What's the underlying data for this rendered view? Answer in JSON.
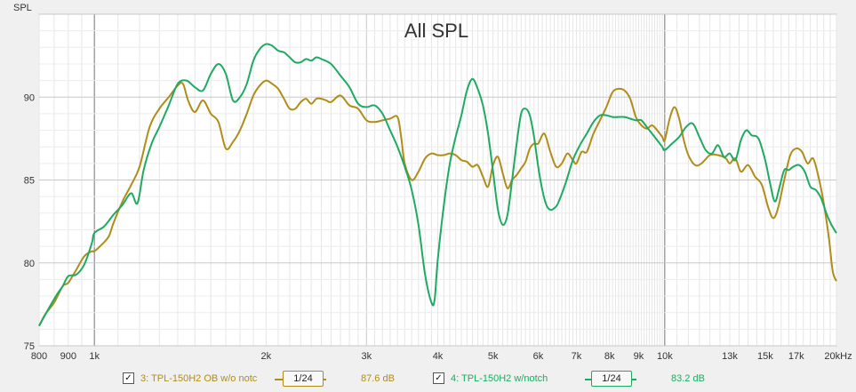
{
  "chart_data": {
    "type": "line",
    "title": "All SPL",
    "ylabel": "SPL",
    "xlabel": "",
    "xscale": "log",
    "xlim": [
      800,
      20000
    ],
    "ylim": [
      75,
      95
    ],
    "grid": true,
    "x_ticks": [
      {
        "value": 800,
        "label": "800"
      },
      {
        "value": 900,
        "label": "900"
      },
      {
        "value": 1000,
        "label": "1k"
      },
      {
        "value": 2000,
        "label": "2k"
      },
      {
        "value": 3000,
        "label": "3k"
      },
      {
        "value": 4000,
        "label": "4k"
      },
      {
        "value": 5000,
        "label": "5k"
      },
      {
        "value": 6000,
        "label": "6k"
      },
      {
        "value": 7000,
        "label": "7k"
      },
      {
        "value": 8000,
        "label": "8k"
      },
      {
        "value": 9000,
        "label": "9k"
      },
      {
        "value": 10000,
        "label": "10k"
      },
      {
        "value": 13000,
        "label": "13k"
      },
      {
        "value": 15000,
        "label": "15k"
      },
      {
        "value": 17000,
        "label": "17k"
      },
      {
        "value": 20000,
        "label": "20kHz"
      }
    ],
    "y_ticks": [
      {
        "value": 75,
        "label": "75"
      },
      {
        "value": 80,
        "label": "80"
      },
      {
        "value": 85,
        "label": "85"
      },
      {
        "value": 90,
        "label": "90"
      }
    ],
    "series": [
      {
        "name": "3: TPL-150H2 OB w/o notc",
        "color": "#b08c18",
        "smoothing": "1/24",
        "value_label": "87.6 dB",
        "points": [
          [
            800,
            76.2
          ],
          [
            820,
            76.9
          ],
          [
            850,
            77.6
          ],
          [
            880,
            78.6
          ],
          [
            900,
            78.8
          ],
          [
            930,
            79.6
          ],
          [
            960,
            80.4
          ],
          [
            990,
            80.7
          ],
          [
            1000,
            80.7
          ],
          [
            1030,
            81.1
          ],
          [
            1060,
            81.6
          ],
          [
            1080,
            82.4
          ],
          [
            1120,
            83.7
          ],
          [
            1160,
            84.7
          ],
          [
            1200,
            85.8
          ],
          [
            1250,
            88.2
          ],
          [
            1300,
            89.3
          ],
          [
            1350,
            90.0
          ],
          [
            1400,
            90.7
          ],
          [
            1430,
            90.8
          ],
          [
            1460,
            89.8
          ],
          [
            1500,
            89.1
          ],
          [
            1550,
            89.8
          ],
          [
            1600,
            89.0
          ],
          [
            1650,
            88.5
          ],
          [
            1700,
            86.9
          ],
          [
            1750,
            87.3
          ],
          [
            1800,
            88.0
          ],
          [
            1850,
            89.0
          ],
          [
            1900,
            90.1
          ],
          [
            1950,
            90.7
          ],
          [
            2000,
            91.0
          ],
          [
            2050,
            90.8
          ],
          [
            2100,
            90.5
          ],
          [
            2150,
            89.9
          ],
          [
            2200,
            89.3
          ],
          [
            2250,
            89.3
          ],
          [
            2300,
            89.7
          ],
          [
            2350,
            89.9
          ],
          [
            2400,
            89.6
          ],
          [
            2450,
            89.9
          ],
          [
            2500,
            89.9
          ],
          [
            2550,
            89.8
          ],
          [
            2600,
            89.7
          ],
          [
            2700,
            90.1
          ],
          [
            2800,
            89.5
          ],
          [
            2900,
            89.3
          ],
          [
            3000,
            88.6
          ],
          [
            3100,
            88.5
          ],
          [
            3200,
            88.6
          ],
          [
            3300,
            88.7
          ],
          [
            3400,
            88.8
          ],
          [
            3450,
            87.6
          ],
          [
            3500,
            86.0
          ],
          [
            3600,
            85.0
          ],
          [
            3700,
            85.5
          ],
          [
            3800,
            86.3
          ],
          [
            3900,
            86.6
          ],
          [
            4000,
            86.5
          ],
          [
            4100,
            86.5
          ],
          [
            4200,
            86.6
          ],
          [
            4300,
            86.5
          ],
          [
            4400,
            86.2
          ],
          [
            4500,
            86.1
          ],
          [
            4600,
            85.8
          ],
          [
            4700,
            85.9
          ],
          [
            4800,
            85.2
          ],
          [
            4900,
            84.6
          ],
          [
            5000,
            85.9
          ],
          [
            5100,
            86.4
          ],
          [
            5200,
            85.4
          ],
          [
            5300,
            84.5
          ],
          [
            5400,
            85.0
          ],
          [
            5500,
            85.3
          ],
          [
            5600,
            85.7
          ],
          [
            5700,
            86.1
          ],
          [
            5800,
            86.9
          ],
          [
            5900,
            87.2
          ],
          [
            6000,
            87.2
          ],
          [
            6150,
            87.8
          ],
          [
            6300,
            86.7
          ],
          [
            6450,
            85.8
          ],
          [
            6600,
            86.0
          ],
          [
            6750,
            86.6
          ],
          [
            6900,
            86.2
          ],
          [
            7000,
            86.0
          ],
          [
            7150,
            86.7
          ],
          [
            7300,
            86.7
          ],
          [
            7500,
            87.8
          ],
          [
            7700,
            88.6
          ],
          [
            7900,
            89.4
          ],
          [
            8100,
            90.3
          ],
          [
            8300,
            90.5
          ],
          [
            8500,
            90.4
          ],
          [
            8700,
            89.9
          ],
          [
            8900,
            88.8
          ],
          [
            9100,
            88.3
          ],
          [
            9300,
            88.1
          ],
          [
            9500,
            88.3
          ],
          [
            9700,
            88.0
          ],
          [
            9900,
            87.6
          ],
          [
            10000,
            87.4
          ],
          [
            10200,
            88.7
          ],
          [
            10400,
            89.4
          ],
          [
            10600,
            88.7
          ],
          [
            10800,
            87.4
          ],
          [
            11000,
            86.5
          ],
          [
            11300,
            85.9
          ],
          [
            11600,
            86.0
          ],
          [
            12000,
            86.5
          ],
          [
            12400,
            86.5
          ],
          [
            12800,
            86.3
          ],
          [
            13000,
            86.0
          ],
          [
            13300,
            86.3
          ],
          [
            13600,
            85.5
          ],
          [
            14000,
            85.9
          ],
          [
            14400,
            85.2
          ],
          [
            14800,
            84.7
          ],
          [
            15200,
            83.3
          ],
          [
            15500,
            82.7
          ],
          [
            15800,
            83.3
          ],
          [
            16200,
            85.0
          ],
          [
            16600,
            86.5
          ],
          [
            17000,
            86.9
          ],
          [
            17400,
            86.7
          ],
          [
            17800,
            86.0
          ],
          [
            18200,
            86.3
          ],
          [
            18600,
            85.2
          ],
          [
            19000,
            83.6
          ],
          [
            19400,
            81.5
          ],
          [
            19700,
            79.5
          ],
          [
            20000,
            78.9
          ]
        ]
      },
      {
        "name": "4: TPL-150H2 w/notch",
        "color": "#1faa62",
        "smoothing": "1/24",
        "value_label": "83.2 dB",
        "points": [
          [
            800,
            76.2
          ],
          [
            830,
            77.2
          ],
          [
            860,
            78.1
          ],
          [
            880,
            78.6
          ],
          [
            900,
            79.2
          ],
          [
            930,
            79.3
          ],
          [
            960,
            79.9
          ],
          [
            990,
            81.2
          ],
          [
            1000,
            81.8
          ],
          [
            1040,
            82.2
          ],
          [
            1080,
            82.9
          ],
          [
            1120,
            83.5
          ],
          [
            1160,
            84.2
          ],
          [
            1190,
            83.6
          ],
          [
            1220,
            85.6
          ],
          [
            1260,
            87.2
          ],
          [
            1300,
            88.2
          ],
          [
            1350,
            89.5
          ],
          [
            1400,
            90.8
          ],
          [
            1450,
            91.0
          ],
          [
            1500,
            90.6
          ],
          [
            1550,
            90.4
          ],
          [
            1600,
            91.4
          ],
          [
            1650,
            92.0
          ],
          [
            1700,
            91.4
          ],
          [
            1750,
            89.8
          ],
          [
            1800,
            90.0
          ],
          [
            1850,
            90.8
          ],
          [
            1900,
            92.2
          ],
          [
            1950,
            92.9
          ],
          [
            2000,
            93.2
          ],
          [
            2050,
            93.1
          ],
          [
            2100,
            92.8
          ],
          [
            2150,
            92.7
          ],
          [
            2200,
            92.4
          ],
          [
            2250,
            92.1
          ],
          [
            2300,
            92.1
          ],
          [
            2350,
            92.3
          ],
          [
            2400,
            92.2
          ],
          [
            2450,
            92.4
          ],
          [
            2500,
            92.3
          ],
          [
            2600,
            92.0
          ],
          [
            2700,
            91.3
          ],
          [
            2800,
            90.6
          ],
          [
            2900,
            89.6
          ],
          [
            3000,
            89.4
          ],
          [
            3100,
            89.5
          ],
          [
            3200,
            89.0
          ],
          [
            3300,
            88.0
          ],
          [
            3400,
            87.0
          ],
          [
            3500,
            85.8
          ],
          [
            3600,
            84.4
          ],
          [
            3700,
            82.3
          ],
          [
            3800,
            79.3
          ],
          [
            3900,
            77.6
          ],
          [
            3950,
            77.8
          ],
          [
            4000,
            80.2
          ],
          [
            4100,
            83.5
          ],
          [
            4200,
            86.0
          ],
          [
            4300,
            87.6
          ],
          [
            4400,
            88.9
          ],
          [
            4500,
            90.4
          ],
          [
            4600,
            91.1
          ],
          [
            4700,
            90.5
          ],
          [
            4800,
            89.5
          ],
          [
            4900,
            87.8
          ],
          [
            5000,
            85.5
          ],
          [
            5100,
            83.2
          ],
          [
            5200,
            82.3
          ],
          [
            5300,
            82.9
          ],
          [
            5400,
            85.0
          ],
          [
            5500,
            87.2
          ],
          [
            5600,
            89.0
          ],
          [
            5700,
            89.3
          ],
          [
            5800,
            88.9
          ],
          [
            5900,
            87.6
          ],
          [
            6000,
            85.8
          ],
          [
            6100,
            84.4
          ],
          [
            6200,
            83.5
          ],
          [
            6300,
            83.2
          ],
          [
            6400,
            83.3
          ],
          [
            6500,
            83.6
          ],
          [
            6700,
            84.8
          ],
          [
            6900,
            86.2
          ],
          [
            7100,
            87.1
          ],
          [
            7300,
            87.8
          ],
          [
            7500,
            88.5
          ],
          [
            7700,
            88.9
          ],
          [
            7900,
            88.9
          ],
          [
            8100,
            88.8
          ],
          [
            8300,
            88.8
          ],
          [
            8500,
            88.8
          ],
          [
            8700,
            88.7
          ],
          [
            8900,
            88.6
          ],
          [
            9100,
            88.6
          ],
          [
            9300,
            88.2
          ],
          [
            9500,
            87.8
          ],
          [
            9700,
            87.4
          ],
          [
            9900,
            87.0
          ],
          [
            10000,
            86.8
          ],
          [
            10300,
            87.2
          ],
          [
            10600,
            87.6
          ],
          [
            10900,
            88.2
          ],
          [
            11200,
            88.4
          ],
          [
            11500,
            87.6
          ],
          [
            11800,
            86.8
          ],
          [
            12100,
            86.6
          ],
          [
            12400,
            87.1
          ],
          [
            12700,
            86.4
          ],
          [
            13000,
            86.6
          ],
          [
            13300,
            86.2
          ],
          [
            13600,
            87.4
          ],
          [
            13900,
            88.0
          ],
          [
            14200,
            87.7
          ],
          [
            14600,
            87.5
          ],
          [
            15000,
            86.2
          ],
          [
            15300,
            84.8
          ],
          [
            15600,
            83.7
          ],
          [
            15900,
            84.6
          ],
          [
            16200,
            85.6
          ],
          [
            16500,
            85.6
          ],
          [
            16800,
            85.8
          ],
          [
            17200,
            85.9
          ],
          [
            17600,
            85.5
          ],
          [
            18000,
            84.6
          ],
          [
            18400,
            84.4
          ],
          [
            18800,
            83.9
          ],
          [
            19200,
            83.0
          ],
          [
            19600,
            82.3
          ],
          [
            20000,
            81.8
          ]
        ]
      }
    ],
    "legend_placement": "bottom"
  }
}
